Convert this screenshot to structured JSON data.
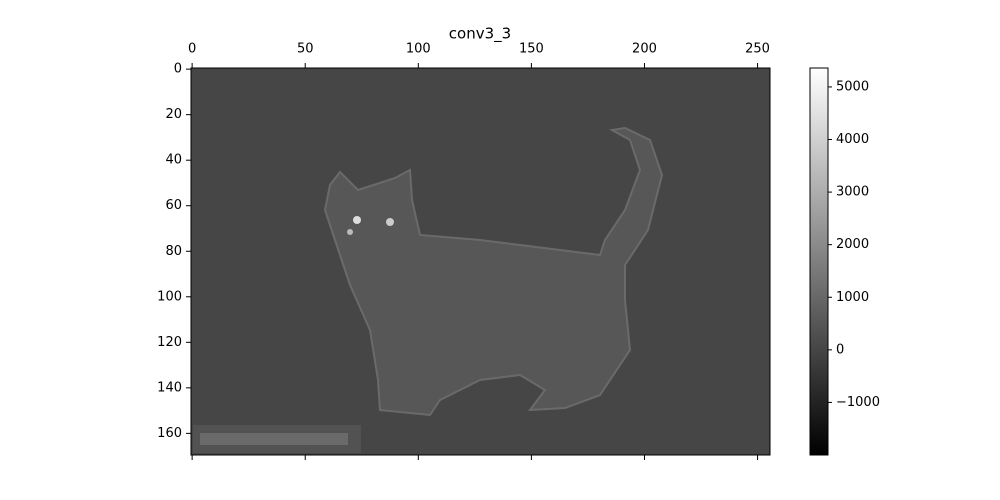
{
  "chart_data": {
    "type": "heatmap",
    "title": "conv3_3",
    "cmap": "gray",
    "xlim": [
      -0.5,
      255.5
    ],
    "xticks": [
      0,
      50,
      100,
      150,
      200,
      250
    ],
    "ylim": [
      -0.5,
      169.5
    ],
    "yticks": [
      0,
      20,
      40,
      60,
      80,
      100,
      120,
      140,
      160
    ],
    "colorbar": {
      "clim": [
        -2000,
        5360
      ],
      "ticks": [
        {
          "value": -1000,
          "label": "−1000"
        },
        0,
        1000,
        2000,
        3000,
        4000,
        5000
      ]
    }
  }
}
